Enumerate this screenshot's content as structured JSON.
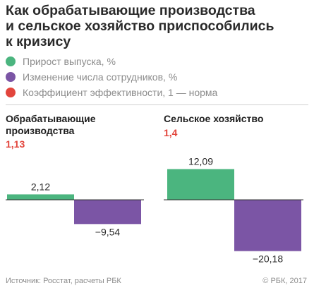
{
  "title_lines": [
    "Как обрабатывающие производства",
    "и сельское хозяйство приспособились",
    "к кризису"
  ],
  "legend": [
    {
      "label": "Прирост выпуска, %",
      "color": "#4bb57f"
    },
    {
      "label": "Изменение числа сотрудников, %",
      "color": "#7b55a5"
    },
    {
      "label": "Коэффициент эффективности, 1 — норма",
      "color": "#e2453c"
    }
  ],
  "colors": {
    "output": "#4bb57f",
    "employees": "#7b55a5",
    "coef": "#e2453c",
    "axis": "#333333"
  },
  "chart_data": [
    {
      "type": "bar",
      "title": "Обрабатывающие производства",
      "coefficient": "1,13",
      "series": [
        {
          "name": "Прирост выпуска, %",
          "value": 2.12,
          "label": "2,12"
        },
        {
          "name": "Изменение числа сотрудников, %",
          "value": -9.54,
          "label": "−9,54"
        }
      ]
    },
    {
      "type": "bar",
      "title": "Сельское хозяйство",
      "coefficient": "1,4",
      "series": [
        {
          "name": "Прирост выпуска, %",
          "value": 12.09,
          "label": "12,09"
        },
        {
          "name": "Изменение числа сотрудников, %",
          "value": -20.18,
          "label": "−20,18"
        }
      ]
    }
  ],
  "source": "Источник: Росстат, расчеты РБК",
  "copyright": "© РБК, 2017"
}
